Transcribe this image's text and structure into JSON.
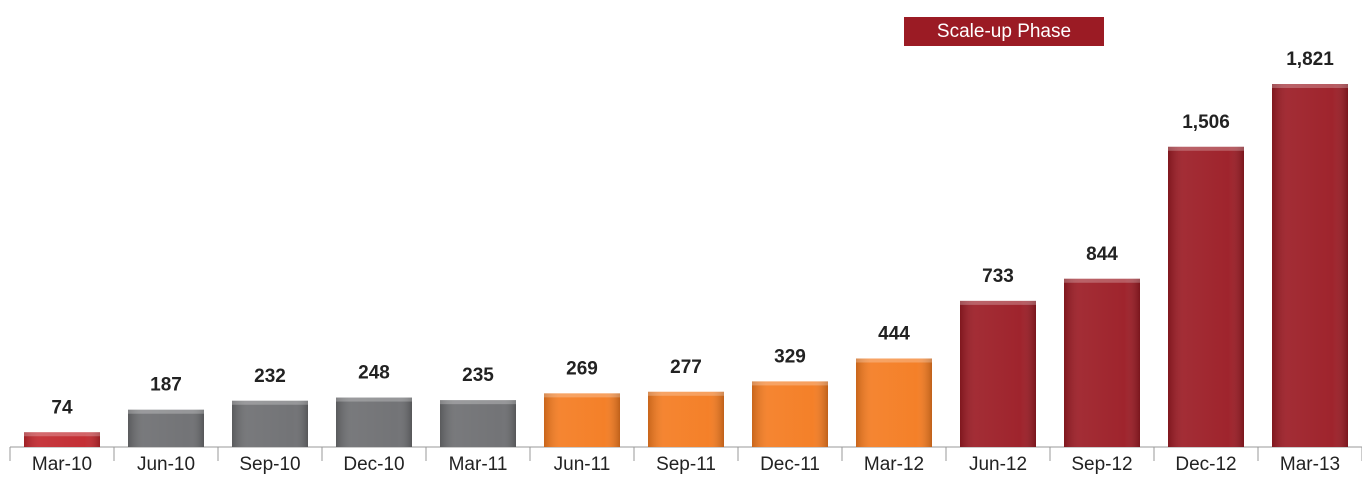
{
  "chart_data": {
    "type": "bar",
    "categories": [
      "Mar-10",
      "Jun-10",
      "Sep-10",
      "Dec-10",
      "Mar-11",
      "Jun-11",
      "Sep-11",
      "Dec-11",
      "Mar-12",
      "Jun-12",
      "Sep-12",
      "Dec-12",
      "Mar-13"
    ],
    "values": [
      74,
      187,
      232,
      248,
      235,
      269,
      277,
      329,
      444,
      733,
      844,
      1506,
      1821
    ],
    "value_labels": [
      "74",
      "187",
      "232",
      "248",
      "235",
      "269",
      "277",
      "329",
      "444",
      "733",
      "844",
      "1,506",
      "1,821"
    ],
    "colors": [
      "#c1272d",
      "#6d6e71",
      "#6d6e71",
      "#6d6e71",
      "#6d6e71",
      "#f47b20",
      "#f47b20",
      "#f47b20",
      "#f47b20",
      "#9b1b24",
      "#9b1b24",
      "#9b1b24",
      "#9b1b24"
    ],
    "annotation": "Scale-up Phase",
    "annotation_color": "#9b1b24"
  }
}
